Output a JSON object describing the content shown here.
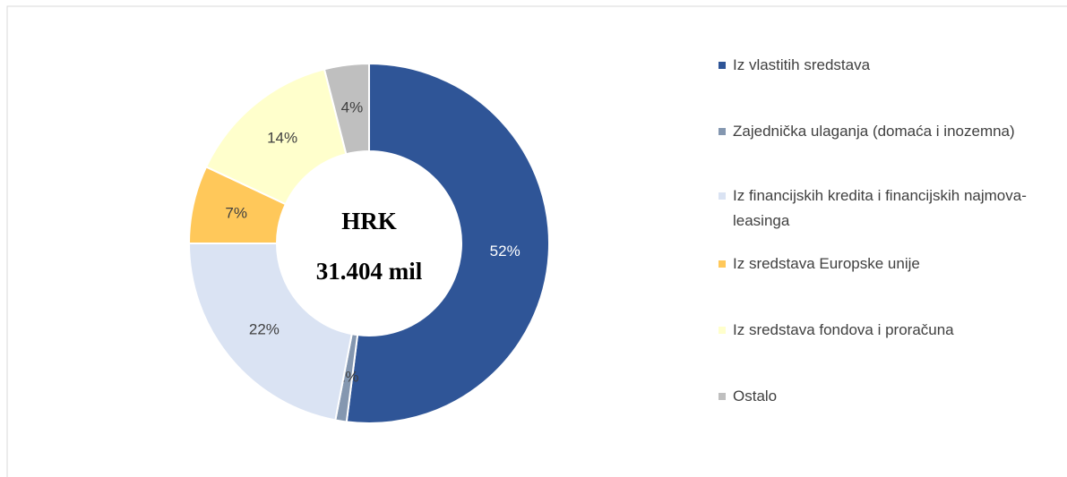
{
  "chart_data": {
    "type": "donut",
    "categories": [
      "Iz vlastitih sredstava",
      "Zajednička ulaganja (domaća i inozemna)",
      "Iz financijskih kredita i financijskih najmova- leasinga",
      "Iz sredstava Europske unije",
      "Iz sredstava fondova i proračuna",
      "Ostalo"
    ],
    "values": [
      52,
      1,
      22,
      7,
      14,
      4
    ],
    "value_labels": [
      "52%",
      "1%",
      "22%",
      "7%",
      "14%",
      "4%"
    ],
    "colors": [
      "#2f5597",
      "#8497b0",
      "#dae3f3",
      "#ffc85a",
      "#ffffcc",
      "#bfbfbf"
    ],
    "center_labels": [
      "HRK",
      "31.404 mil"
    ],
    "legend": "right"
  }
}
